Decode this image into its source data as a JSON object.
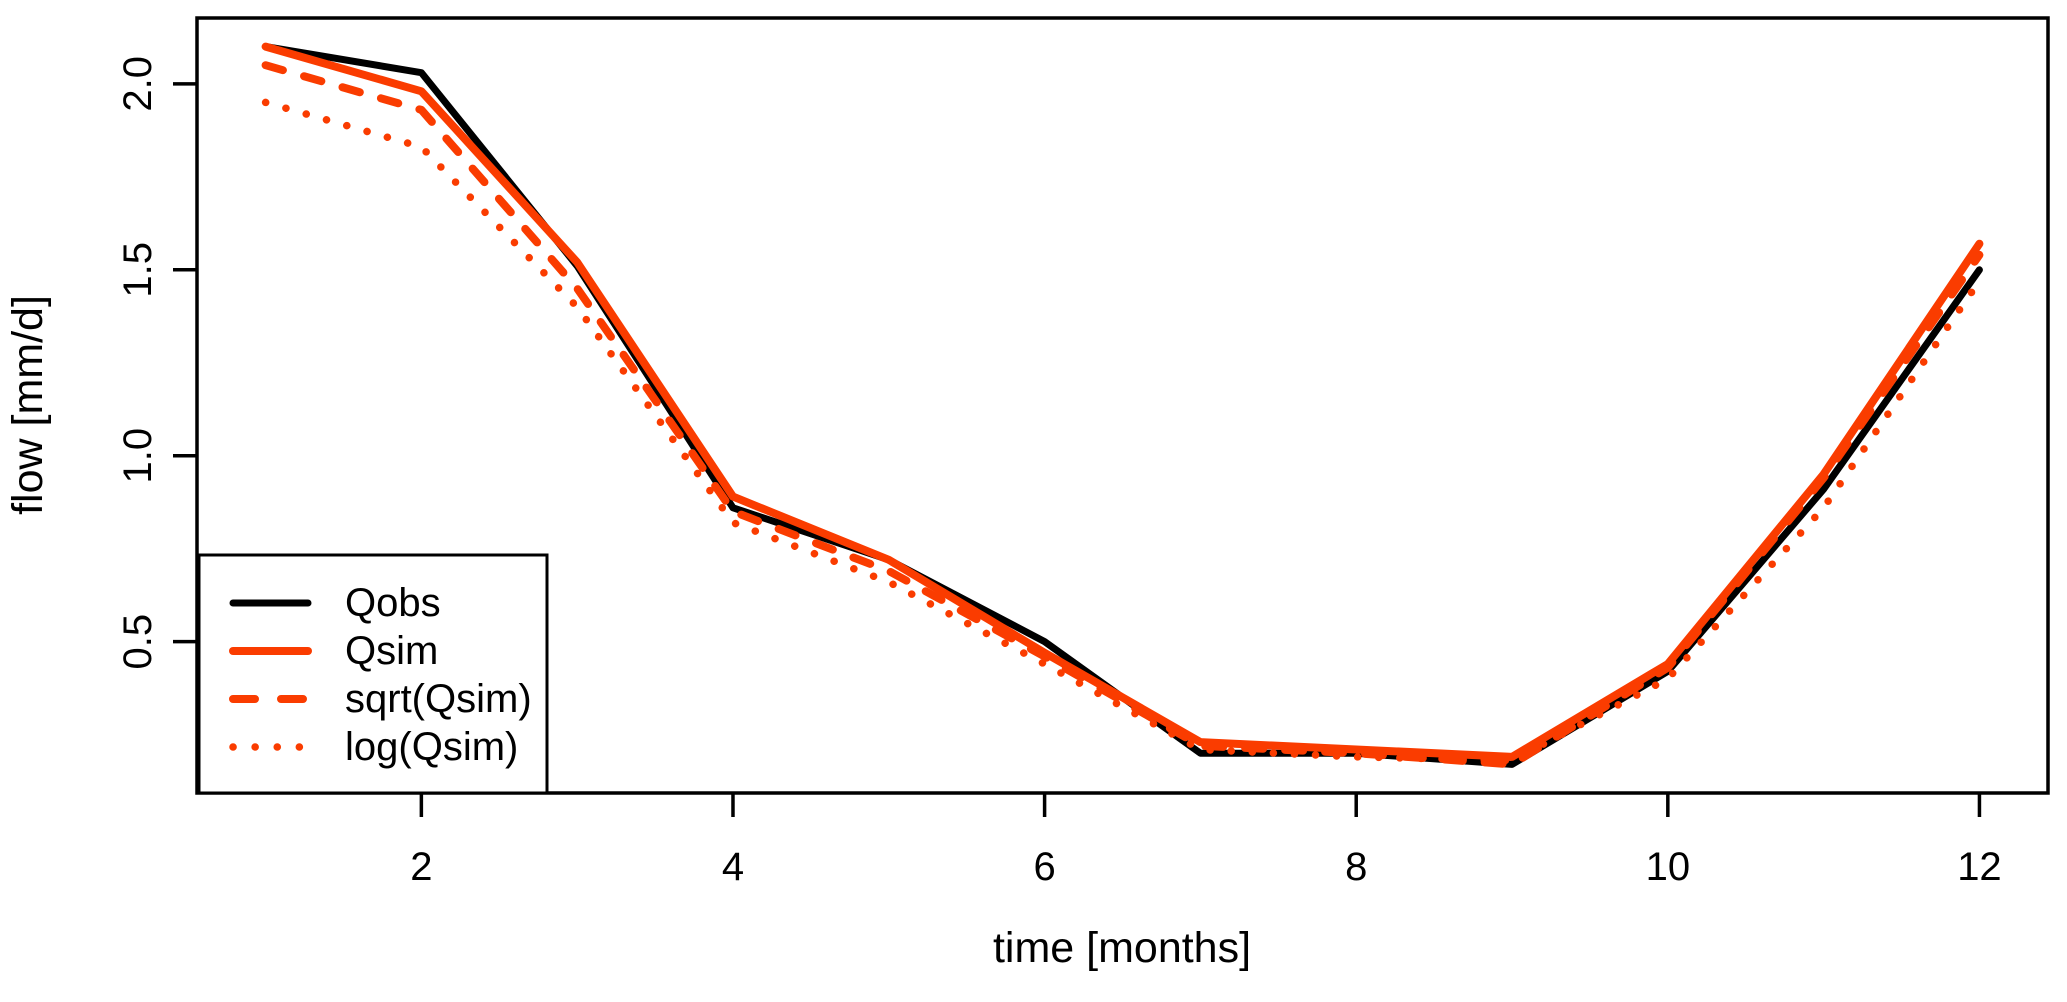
{
  "figure": {
    "background": "#ffffff",
    "accent_color": "#FA3C00",
    "line_color_black": "#000000"
  },
  "chart_data": {
    "type": "line",
    "title": "",
    "xlabel": "time [months]",
    "ylabel": "flow [mm/d]",
    "x": [
      1,
      2,
      3,
      4,
      5,
      6,
      7,
      8,
      9,
      10,
      11,
      12
    ],
    "x_ticks": [
      "2",
      "4",
      "6",
      "8",
      "10",
      "12"
    ],
    "x_tick_values": [
      2,
      4,
      6,
      8,
      10,
      12
    ],
    "y_ticks": [
      "0.5",
      "1.0",
      "1.5",
      "2.0"
    ],
    "y_tick_values": [
      0.5,
      1.0,
      1.5,
      2.0
    ],
    "xlim": [
      0.56,
      12.44
    ],
    "ylim": [
      0.093,
      2.177
    ],
    "grid": false,
    "legend_position": "bottomleft",
    "series": [
      {
        "name": "Qobs",
        "color": "#000000",
        "style": "solid",
        "width": 7,
        "values": [
          2.1,
          2.03,
          1.51,
          0.86,
          0.72,
          0.5,
          0.2,
          0.2,
          0.17,
          0.42,
          0.91,
          1.5
        ]
      },
      {
        "name": "Qsim",
        "color": "#FA3C00",
        "style": "solid",
        "width": 8,
        "values": [
          2.1,
          1.98,
          1.52,
          0.89,
          0.72,
          0.47,
          0.23,
          0.21,
          0.19,
          0.44,
          0.95,
          1.57
        ]
      },
      {
        "name": "sqrt(Qsim)",
        "color": "#FA3C00",
        "style": "dashed",
        "width": 8,
        "values": [
          2.05,
          1.93,
          1.45,
          0.85,
          0.69,
          0.46,
          0.22,
          0.2,
          0.17,
          0.43,
          0.94,
          1.54
        ]
      },
      {
        "name": "log(Qsim)",
        "color": "#FA3C00",
        "style": "dotted",
        "width": 7.5,
        "values": [
          1.95,
          1.83,
          1.4,
          0.82,
          0.66,
          0.44,
          0.21,
          0.19,
          0.18,
          0.4,
          0.86,
          1.47
        ]
      }
    ]
  }
}
